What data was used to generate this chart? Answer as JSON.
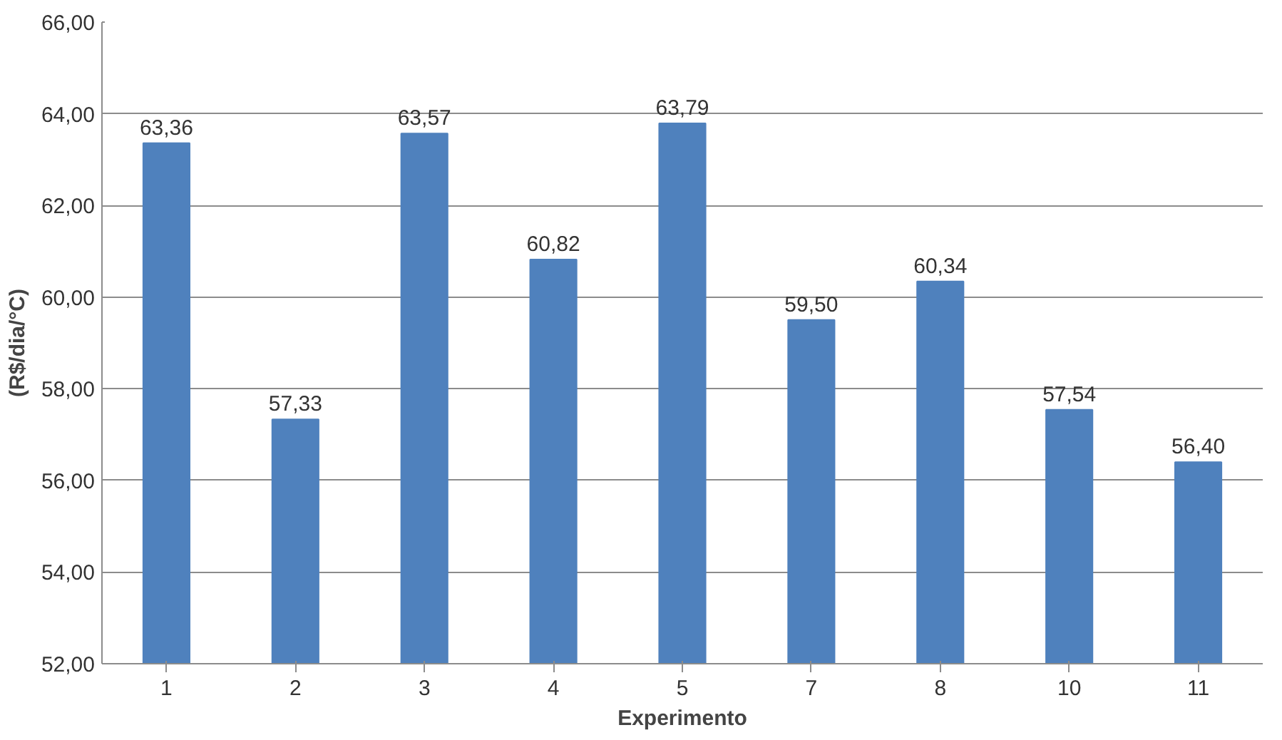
{
  "chart_data": {
    "type": "bar",
    "xlabel": "Experimento",
    "ylabel": "(R$/dia/°C)",
    "categories": [
      "1",
      "2",
      "3",
      "4",
      "5",
      "7",
      "8",
      "10",
      "11"
    ],
    "values": [
      63.36,
      57.33,
      63.57,
      60.82,
      63.79,
      59.5,
      60.34,
      57.54,
      56.4
    ],
    "value_labels": [
      "63,36",
      "57,33",
      "63,57",
      "60,82",
      "63,79",
      "59,50",
      "60,34",
      "57,54",
      "56,40"
    ],
    "color": "#4f81bd",
    "ylim": [
      52,
      66
    ],
    "yticks": [
      {
        "value": 52,
        "label": "52,00"
      },
      {
        "value": 54,
        "label": "54,00"
      },
      {
        "value": 56,
        "label": "56,00"
      },
      {
        "value": 58,
        "label": "58,00"
      },
      {
        "value": 60,
        "label": "60,00"
      },
      {
        "value": 62,
        "label": "62,00"
      },
      {
        "value": 64,
        "label": "64,00"
      },
      {
        "value": 66,
        "label": "66,00"
      }
    ],
    "grid": "y"
  }
}
